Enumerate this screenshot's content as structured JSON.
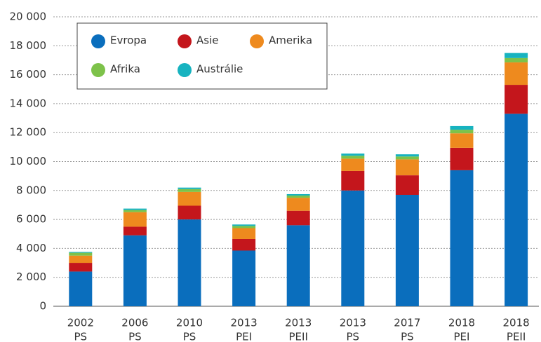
{
  "chart_data": {
    "type": "stacked_bar",
    "categories": [
      [
        "2002",
        "PS"
      ],
      [
        "2006",
        "PS"
      ],
      [
        "2010",
        "PS"
      ],
      [
        "2013",
        "PEI"
      ],
      [
        "2013",
        "PEII"
      ],
      [
        "2013",
        "PS"
      ],
      [
        "2017",
        "PS"
      ],
      [
        "2018",
        "PEI"
      ],
      [
        "2018",
        "PEII"
      ]
    ],
    "series": [
      {
        "name": "Evropa",
        "color": "#0a6ebd",
        "values": [
          2400,
          4900,
          6000,
          3850,
          5600,
          8000,
          7700,
          9400,
          13300
        ]
      },
      {
        "name": "Asie",
        "color": "#c4161c",
        "values": [
          600,
          600,
          950,
          800,
          1000,
          1350,
          1350,
          1550,
          2000
        ]
      },
      {
        "name": "Amerika",
        "color": "#ee8a1e",
        "values": [
          500,
          1000,
          950,
          750,
          900,
          850,
          1100,
          1000,
          1550
        ]
      },
      {
        "name": "Afrika",
        "color": "#7dc24a",
        "values": [
          200,
          150,
          200,
          150,
          150,
          200,
          200,
          250,
          300
        ]
      },
      {
        "name": "Austrálie",
        "color": "#17b3c0",
        "values": [
          50,
          100,
          100,
          100,
          100,
          150,
          150,
          250,
          350
        ]
      }
    ],
    "ylim": [
      0,
      20000
    ],
    "yticks": [
      0,
      {
        "value": 2000,
        "label": "2 000"
      },
      {
        "value": 4000,
        "label": "4 000"
      },
      {
        "value": 6000,
        "label": "6 000"
      },
      {
        "value": 8000,
        "label": "8 000"
      },
      {
        "value": 10000,
        "label": "10 000"
      },
      {
        "value": 12000,
        "label": "12 000"
      },
      {
        "value": 14000,
        "label": "14 000"
      },
      {
        "value": 16000,
        "label": "16 000"
      },
      {
        "value": 18000,
        "label": "18 000"
      },
      {
        "value": 20000,
        "label": "20 000"
      }
    ],
    "grid": true,
    "legend": "top-left"
  }
}
